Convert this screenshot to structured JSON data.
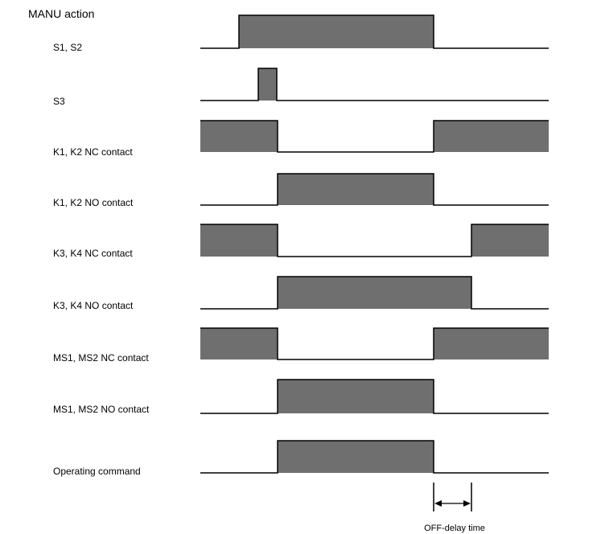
{
  "title": "MANU action",
  "colors": {
    "pulse_fill": "#6f6f6f",
    "signal_line": "#000000",
    "background": "#ffffff"
  },
  "signals": [
    {
      "label": "S1, S2",
      "pattern": "low-high-low"
    },
    {
      "label": "S3",
      "pattern": "low-short-pulse-low"
    },
    {
      "label": "K1, K2 NC contact",
      "pattern": "high-low-high"
    },
    {
      "label": "K1, K2 NO contact",
      "pattern": "low-high-low"
    },
    {
      "label": "K3, K4 NC contact",
      "pattern": "high-low-high"
    },
    {
      "label": "K3, K4 NO contact",
      "pattern": "low-high-low"
    },
    {
      "label": "MS1, MS2 NC contact",
      "pattern": "high-low-high"
    },
    {
      "label": "MS1, MS2 NO contact",
      "pattern": "low-high-low"
    },
    {
      "label": "Operating command",
      "pattern": "low-high-low"
    }
  ],
  "annotation": {
    "label": "OFF-delay time",
    "icon": "double-arrow-icon"
  }
}
